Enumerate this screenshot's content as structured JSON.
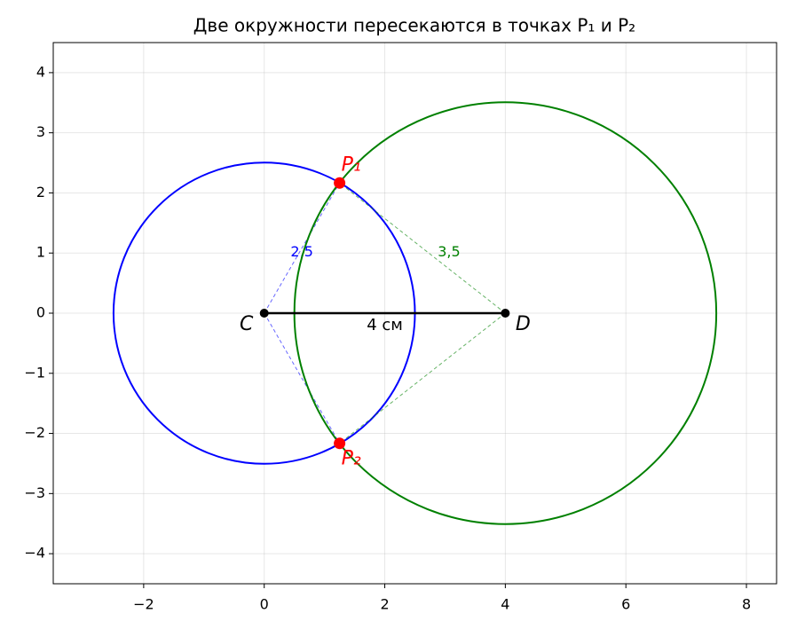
{
  "chart_data": {
    "type": "geometry",
    "title": "Две окружности пересекаются в точках P₁ и P₂",
    "xlim": [
      -3.5,
      8.5
    ],
    "ylim": [
      -4.5,
      4.5
    ],
    "xticks": [
      {
        "value": -2,
        "label": "−2"
      },
      0,
      2,
      4,
      6,
      8
    ],
    "yticks": [
      {
        "value": -4,
        "label": "−4"
      },
      {
        "value": -3,
        "label": "−3"
      },
      {
        "value": -2,
        "label": "−2"
      },
      {
        "value": -1,
        "label": "−1"
      },
      0,
      1,
      2,
      3,
      4
    ],
    "grid": true,
    "circles": [
      {
        "center": [
          0,
          0
        ],
        "radius": 2.5,
        "radius_label": "2,5",
        "color": "#0000ff"
      },
      {
        "center": [
          4,
          0
        ],
        "radius": 3.5,
        "radius_label": "3,5",
        "color": "#008000"
      }
    ],
    "segment": {
      "from": [
        0,
        0
      ],
      "to": [
        4,
        0
      ],
      "length": 4,
      "label": "4 см",
      "color": "#000000"
    },
    "points": [
      {
        "label": "C",
        "x": 0,
        "y": 0,
        "color": "#000000"
      },
      {
        "label": "D",
        "x": 4,
        "y": 0,
        "color": "#000000"
      },
      {
        "label": "P₁",
        "x": 1.25,
        "y": 2.165,
        "color": "#ff0000"
      },
      {
        "label": "P₂",
        "x": 1.25,
        "y": -2.165,
        "color": "#ff0000"
      }
    ]
  }
}
